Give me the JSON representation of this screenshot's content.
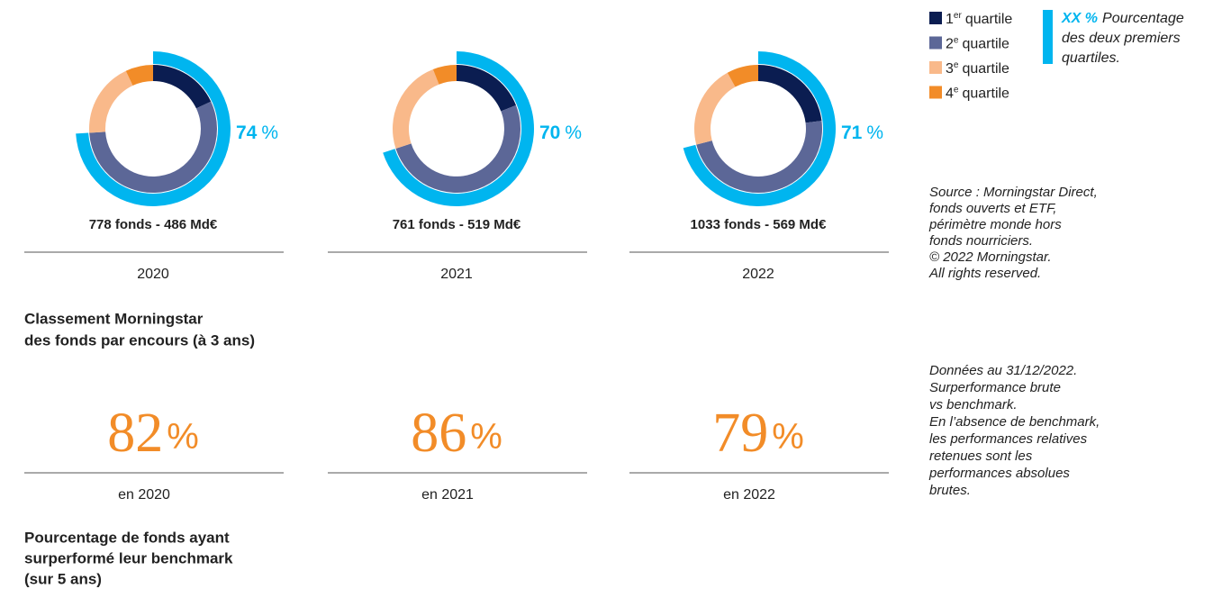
{
  "quartiles": [
    {
      "ordinal": "1",
      "suffix": "er",
      "label": "quartile",
      "color": "#0b1d51"
    },
    {
      "ordinal": "2",
      "suffix": "e",
      "label": "quartile",
      "color": "#5c6797"
    },
    {
      "ordinal": "3",
      "suffix": "e",
      "label": "quartile",
      "color": "#f9b98a"
    },
    {
      "ordinal": "4",
      "suffix": "e",
      "label": "quartile",
      "color": "#f28c28"
    }
  ],
  "highlight_legend": {
    "marker": "XX %",
    "lines": [
      "Pourcentage",
      "des deux premiers",
      "quartiles."
    ],
    "color": "#00b5ef"
  },
  "unit": "%",
  "chart_data": [
    {
      "type": "donut",
      "values": [
        18,
        56,
        19,
        7
      ],
      "highlight": 74,
      "caption": "778 fonds - 486 Md€",
      "year": "2020"
    },
    {
      "type": "donut",
      "values": [
        19,
        51,
        24,
        6
      ],
      "highlight": 70,
      "caption": "761 fonds - 519 Md€",
      "year": "2021"
    },
    {
      "type": "donut",
      "values": [
        23,
        48,
        21,
        8
      ],
      "highlight": 71,
      "caption": "1033 fonds - 569 Md€",
      "year": "2022"
    }
  ],
  "section1_title": [
    "Classement Morningstar",
    "des fonds par encours (à 3 ans)"
  ],
  "outperformance": [
    {
      "value": 82,
      "label": "en 2020"
    },
    {
      "value": 86,
      "label": "en 2021"
    },
    {
      "value": 79,
      "label": "en 2022"
    }
  ],
  "outperformance_color": "#f28c28",
  "section2_title": [
    "Pourcentage de fonds ayant",
    "surperformé leur benchmark",
    "(sur 5 ans)"
  ],
  "source_note": [
    "Source : Morningstar Direct,",
    "fonds ouverts et ETF,",
    "périmètre monde hors",
    "fonds nourriciers.",
    "© 2022 Morningstar.",
    "All rights reserved."
  ],
  "data_note": [
    "Données au 31/12/2022.",
    "Surperformance brute",
    "vs benchmark.",
    "En l’absence de benchmark,",
    "les performances relatives",
    "retenues sont les",
    "performances absolues",
    "brutes."
  ]
}
